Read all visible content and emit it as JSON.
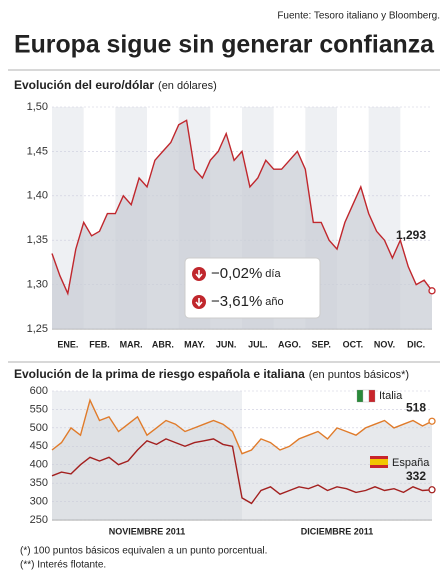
{
  "source": "Fuente: Tesoro italiano y Bloomberg.",
  "title": "Europa sigue sin generar confianza",
  "footnotes": [
    "(*) 100 puntos básicos equivalen a un punto porcentual.",
    "(**) Interés flotante."
  ],
  "chart_data": [
    {
      "type": "line",
      "title": "Evolución del euro/dólar",
      "subtitle": "(en dólares)",
      "x": [
        0,
        0.25,
        0.5,
        0.75,
        1,
        1.25,
        1.5,
        1.75,
        2,
        2.25,
        2.5,
        2.75,
        3,
        3.25,
        3.5,
        3.75,
        4,
        4.25,
        4.5,
        4.75,
        5,
        5.25,
        5.5,
        5.75,
        6,
        6.25,
        6.5,
        6.75,
        7,
        7.25,
        7.5,
        7.75,
        8,
        8.25,
        8.5,
        8.75,
        9,
        9.25,
        9.5,
        9.75,
        10,
        10.25,
        10.5,
        10.75,
        11,
        11.25,
        11.5,
        11.75,
        12
      ],
      "series": [
        {
          "name": "Euro/dólar",
          "color": "#c0272d",
          "values": [
            1.335,
            1.31,
            1.29,
            1.34,
            1.37,
            1.355,
            1.36,
            1.38,
            1.38,
            1.4,
            1.39,
            1.42,
            1.41,
            1.44,
            1.45,
            1.46,
            1.48,
            1.485,
            1.43,
            1.42,
            1.44,
            1.45,
            1.47,
            1.44,
            1.45,
            1.41,
            1.42,
            1.44,
            1.43,
            1.43,
            1.44,
            1.45,
            1.43,
            1.37,
            1.37,
            1.35,
            1.34,
            1.37,
            1.39,
            1.41,
            1.38,
            1.36,
            1.35,
            1.33,
            1.35,
            1.32,
            1.3,
            1.305,
            1.293
          ],
          "value_labels": [
            null,
            null,
            null,
            null,
            null,
            null,
            null,
            null,
            null,
            null,
            null,
            null,
            null,
            null,
            null,
            null,
            null,
            null,
            null,
            null,
            null,
            null,
            null,
            null,
            null,
            null,
            null,
            null,
            null,
            null,
            null,
            null,
            null,
            null,
            null,
            null,
            null,
            null,
            null,
            null,
            null,
            null,
            null,
            null,
            null,
            null,
            null,
            null,
            "1,293"
          ]
        }
      ],
      "xlim": [
        0,
        12
      ],
      "xticks": [
        {
          "value": 0.5,
          "label": "ENE."
        },
        {
          "value": 1.5,
          "label": "FEB."
        },
        {
          "value": 2.5,
          "label": "MAR."
        },
        {
          "value": 3.5,
          "label": "ABR."
        },
        {
          "value": 4.5,
          "label": "MAY."
        },
        {
          "value": 5.5,
          "label": "JUN."
        },
        {
          "value": 6.5,
          "label": "JUL."
        },
        {
          "value": 7.5,
          "label": "AGO."
        },
        {
          "value": 8.5,
          "label": "SEP."
        },
        {
          "value": 9.5,
          "label": "OCT."
        },
        {
          "value": 10.5,
          "label": "NOV."
        },
        {
          "value": 11.5,
          "label": "DIC."
        }
      ],
      "ylim": [
        1.25,
        1.5
      ],
      "yticks": [
        {
          "value": 1.25,
          "label": "1,25"
        },
        {
          "value": 1.3,
          "label": "1,30"
        },
        {
          "value": 1.35,
          "label": "1,35"
        },
        {
          "value": 1.4,
          "label": "1,40"
        },
        {
          "value": 1.45,
          "label": "1,45"
        },
        {
          "value": 1.5,
          "label": "1,50"
        }
      ],
      "annotations": [
        {
          "value": "−0,02%",
          "unit": "día"
        },
        {
          "value": "−3,61%",
          "unit": "año"
        }
      ]
    },
    {
      "type": "line",
      "title": "Evolución de la prima de riesgo española e italiana",
      "subtitle": "(en puntos básicos*)",
      "x": [
        0,
        0.05,
        0.1,
        0.15,
        0.2,
        0.25,
        0.3,
        0.35,
        0.4,
        0.45,
        0.5,
        0.55,
        0.6,
        0.65,
        0.7,
        0.75,
        0.8,
        0.85,
        0.9,
        0.95,
        1,
        1.05,
        1.1,
        1.15,
        1.2,
        1.25,
        1.3,
        1.35,
        1.4,
        1.45,
        1.5,
        1.55,
        1.6,
        1.65,
        1.7,
        1.75,
        1.8,
        1.85,
        1.9,
        1.95,
        2
      ],
      "series": [
        {
          "name": "Italia",
          "color": "#e07b2a",
          "values": [
            440,
            460,
            500,
            480,
            575,
            520,
            530,
            490,
            510,
            530,
            480,
            500,
            520,
            510,
            490,
            500,
            510,
            520,
            510,
            490,
            430,
            440,
            470,
            460,
            440,
            450,
            470,
            480,
            490,
            470,
            500,
            490,
            480,
            500,
            510,
            520,
            500,
            510,
            520,
            505,
            518
          ],
          "value_labels": [
            null,
            null,
            null,
            null,
            null,
            null,
            null,
            null,
            null,
            null,
            null,
            null,
            null,
            null,
            null,
            null,
            null,
            null,
            null,
            null,
            null,
            null,
            null,
            null,
            null,
            null,
            null,
            null,
            null,
            null,
            null,
            null,
            null,
            null,
            null,
            null,
            null,
            null,
            null,
            null,
            "518"
          ]
        },
        {
          "name": "España",
          "color": "#a3201f",
          "values": [
            370,
            380,
            375,
            400,
            420,
            410,
            420,
            400,
            410,
            440,
            465,
            455,
            470,
            460,
            450,
            460,
            465,
            470,
            455,
            450,
            310,
            295,
            330,
            340,
            320,
            330,
            340,
            335,
            345,
            330,
            340,
            335,
            325,
            330,
            340,
            330,
            335,
            325,
            340,
            330,
            332
          ],
          "value_labels": [
            null,
            null,
            null,
            null,
            null,
            null,
            null,
            null,
            null,
            null,
            null,
            null,
            null,
            null,
            null,
            null,
            null,
            null,
            null,
            null,
            null,
            null,
            null,
            null,
            null,
            null,
            null,
            null,
            null,
            null,
            null,
            null,
            null,
            null,
            null,
            null,
            null,
            null,
            null,
            null,
            "332"
          ]
        }
      ],
      "xlim": [
        0,
        2
      ],
      "xticks": [
        {
          "value": 0.5,
          "label": "NOVIEMBRE 2011"
        },
        {
          "value": 1.5,
          "label": "DICIEMBRE 2011"
        }
      ],
      "ylim": [
        250,
        600
      ],
      "yticks": [
        250,
        300,
        350,
        400,
        450,
        500,
        550,
        600
      ]
    }
  ]
}
